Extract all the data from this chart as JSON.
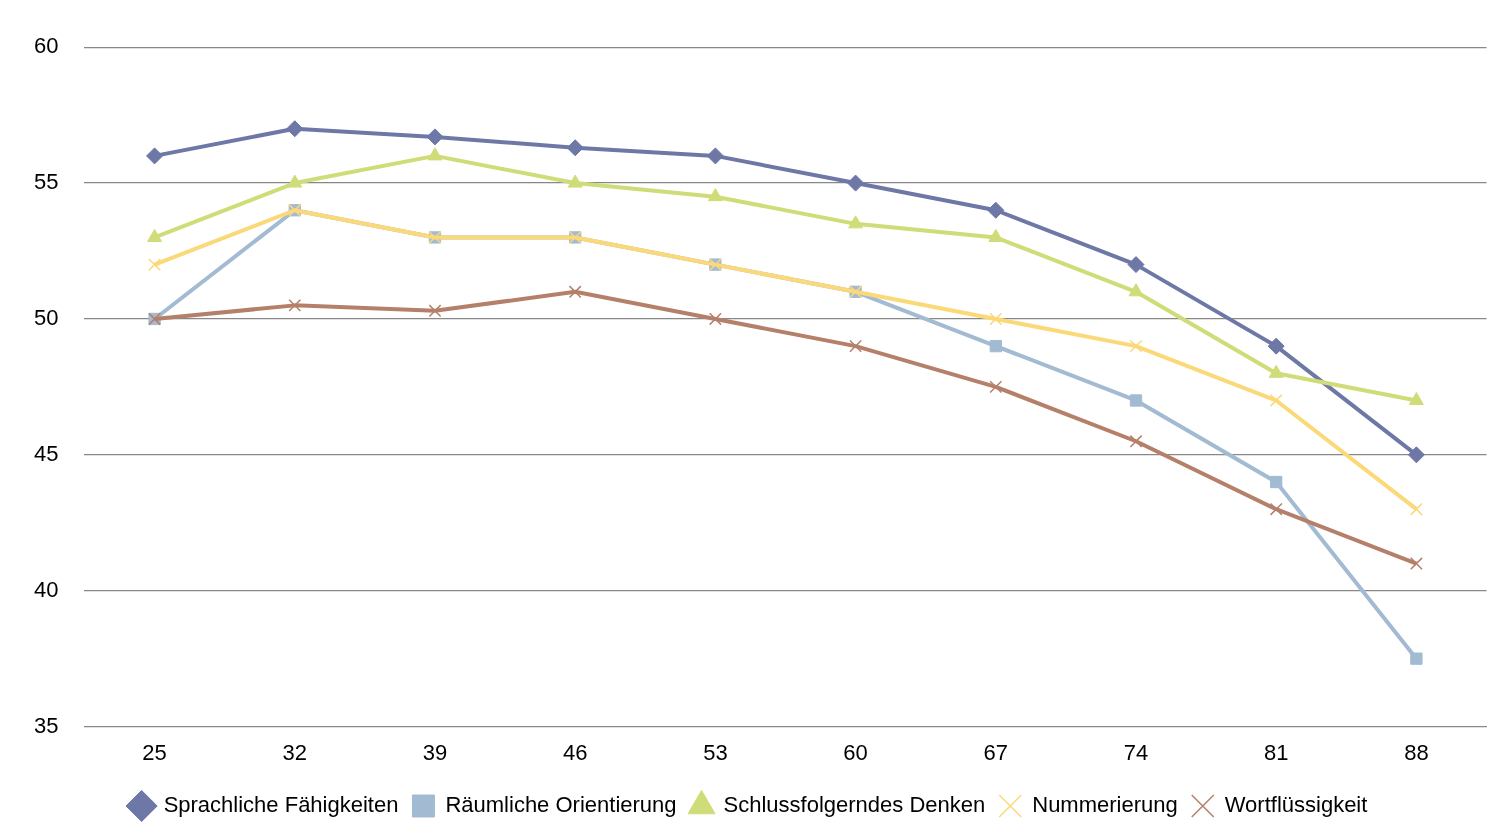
{
  "chart_data": {
    "type": "line",
    "categories": [
      "25",
      "32",
      "39",
      "46",
      "53",
      "60",
      "67",
      "74",
      "81",
      "88"
    ],
    "series": [
      {
        "name": "Sprachliche Fähigkeiten",
        "color": "#6d78a6",
        "marker": "diamond",
        "values": [
          56,
          57,
          56.7,
          56.3,
          56,
          55,
          54,
          52,
          49,
          45
        ]
      },
      {
        "name": "Räumliche Orientierung",
        "color": "#a2bbd2",
        "marker": "square",
        "values": [
          50,
          54,
          53,
          53,
          52,
          51,
          49,
          47,
          44,
          37.5
        ]
      },
      {
        "name": "Schlussfolgerndes Denken",
        "color": "#cfdc78",
        "marker": "triangle",
        "values": [
          53,
          55,
          56,
          55,
          54.5,
          53.5,
          53,
          51,
          48,
          47
        ]
      },
      {
        "name": "Nummerierung",
        "color": "#fbd878",
        "marker": "cross",
        "values": [
          52,
          54,
          53,
          53,
          52,
          51,
          50,
          49,
          47,
          43
        ]
      },
      {
        "name": "Wortflüssigkeit",
        "color": "#b5806a",
        "marker": "cross",
        "values": [
          50,
          50.5,
          50.3,
          51,
          50,
          49,
          47.5,
          45.5,
          43,
          41
        ]
      }
    ],
    "ylim": [
      35,
      60
    ],
    "yticks": [
      35,
      40,
      45,
      50,
      55,
      60
    ],
    "grid": "y",
    "legend": "bottom",
    "line_style": "solid"
  }
}
